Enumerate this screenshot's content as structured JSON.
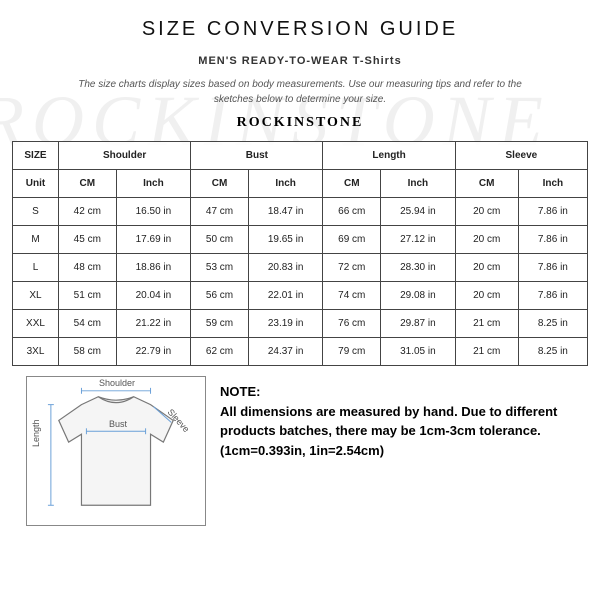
{
  "watermark": "ROCKINSTONE",
  "header": {
    "title": "SIZE CONVERSION GUIDE",
    "subtitle_prefix": "MEN'S READY-TO-WEAR",
    "subtitle_category": "T-Shirts",
    "intro": "The size charts display sizes based on body measurements. Use our measuring tips and refer to the sketches below to determine your size.",
    "brand": "ROCKINSTONE"
  },
  "table": {
    "size_label": "SIZE",
    "unit_label": "Unit",
    "groups": [
      "Shoulder",
      "Bust",
      "Length",
      "Sleeve"
    ],
    "sub_units": [
      "CM",
      "Inch"
    ],
    "columns_flat": [
      "CM",
      "Inch",
      "CM",
      "Inch",
      "CM",
      "Inch",
      "CM",
      "Inch"
    ],
    "sizes": [
      "S",
      "M",
      "L",
      "XL",
      "XXL",
      "3XL"
    ],
    "rows": [
      [
        "42 cm",
        "16.50 in",
        "47 cm",
        "18.47 in",
        "66 cm",
        "25.94 in",
        "20 cm",
        "7.86 in"
      ],
      [
        "45 cm",
        "17.69 in",
        "50 cm",
        "19.65 in",
        "69 cm",
        "27.12 in",
        "20 cm",
        "7.86 in"
      ],
      [
        "48 cm",
        "18.86 in",
        "53 cm",
        "20.83 in",
        "72 cm",
        "28.30 in",
        "20 cm",
        "7.86 in"
      ],
      [
        "51 cm",
        "20.04 in",
        "56 cm",
        "22.01 in",
        "74 cm",
        "29.08 in",
        "20 cm",
        "7.86 in"
      ],
      [
        "54 cm",
        "21.22 in",
        "59 cm",
        "23.19 in",
        "76 cm",
        "29.87 in",
        "21 cm",
        "8.25 in"
      ],
      [
        "58 cm",
        "22.79 in",
        "62 cm",
        "24.37 in",
        "79 cm",
        "31.05 in",
        "21 cm",
        "8.25 in"
      ]
    ],
    "border_color": "#444444",
    "font_size_pt": 10
  },
  "diagram": {
    "labels": {
      "shoulder": "Shoulder",
      "bust": "Bust",
      "length": "Length",
      "sleeve": "Sleeve"
    },
    "stroke_color": "#888888",
    "guide_color": "#6aa0d8"
  },
  "note": {
    "heading": "NOTE:",
    "body": "All dimensions are measured by hand. Due to different products batches, there may be 1cm-3cm tolerance. (1cm=0.393in, 1in=2.54cm)"
  },
  "colors": {
    "background": "#ffffff",
    "watermark": "#f0f0f0",
    "text": "#111111"
  }
}
